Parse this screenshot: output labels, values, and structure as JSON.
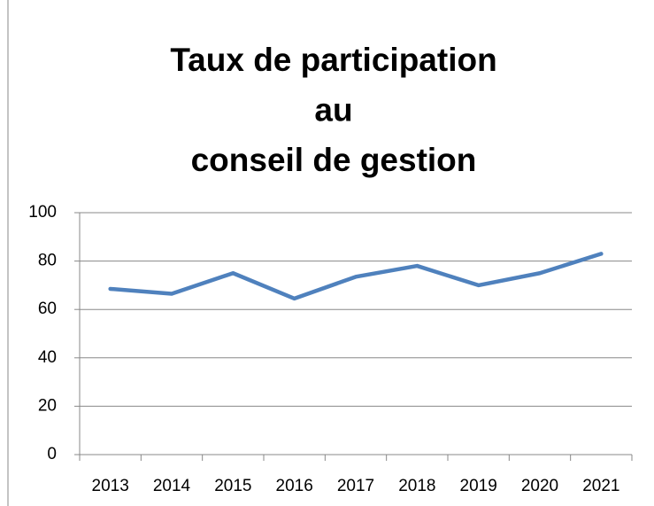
{
  "chart_data": {
    "type": "line",
    "title": [
      "Taux de participation",
      "au",
      "conseil de gestion"
    ],
    "categories": [
      "2013",
      "2014",
      "2015",
      "2016",
      "2017",
      "2018",
      "2019",
      "2020",
      "2021"
    ],
    "series": [
      {
        "name": "Taux de participation",
        "color": "#4f81bd",
        "values": [
          68.5,
          66.5,
          75,
          64.5,
          73.5,
          78,
          70,
          75,
          83
        ]
      }
    ],
    "ylim": [
      0,
      100
    ],
    "yticks": [
      0,
      20,
      40,
      60,
      80,
      100
    ],
    "grid": true
  }
}
